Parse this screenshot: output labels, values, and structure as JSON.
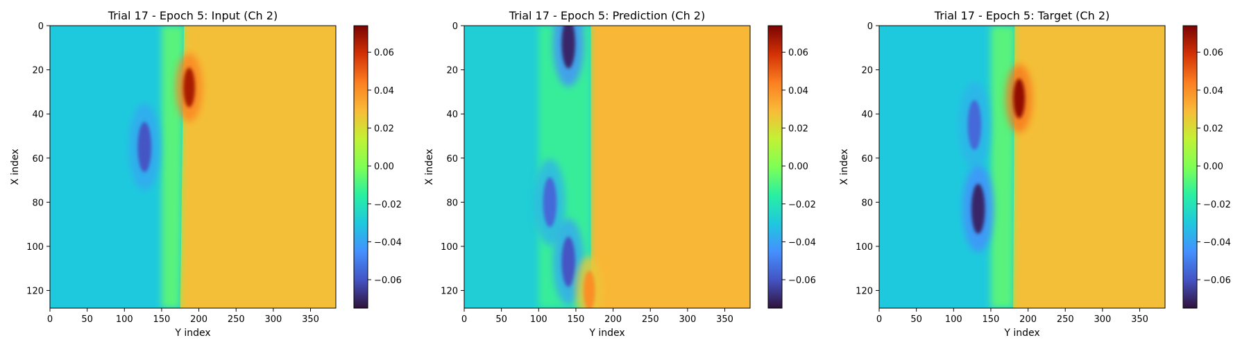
{
  "colormap": {
    "name": "turbo",
    "vmin": -0.075,
    "vmax": 0.074
  },
  "chart_data": [
    {
      "type": "heatmap",
      "title": "Trial 17 - Epoch 5: Input (Ch 2)",
      "xlabel": "Y index",
      "ylabel": "X index",
      "xlim": [
        0,
        384
      ],
      "ylim": [
        128,
        0
      ],
      "x_ticks": [
        0,
        50,
        100,
        150,
        200,
        250,
        300,
        350
      ],
      "y_ticks": [
        0,
        20,
        40,
        60,
        80,
        100,
        120
      ],
      "colorbar_ticks": [
        0.06,
        0.04,
        0.02,
        0.0,
        -0.02,
        -0.04,
        -0.06
      ],
      "colorbar_labels": [
        "0.06",
        "0.04",
        "0.02",
        "0.00",
        "−0.02",
        "−0.04",
        "−0.06"
      ],
      "background_value": 0.028,
      "features": [
        {
          "kind": "left_field",
          "value": -0.03
        },
        {
          "kind": "front",
          "x_at_top": 180,
          "x_at_bottom": 175
        },
        {
          "kind": "transition_band",
          "x_start": 150,
          "x_end": 178,
          "value": -0.005
        },
        {
          "kind": "trough",
          "x": 127,
          "y": 55,
          "value": -0.06
        },
        {
          "kind": "peak",
          "x": 187,
          "y": 28,
          "value": 0.066
        }
      ]
    },
    {
      "type": "heatmap",
      "title": "Trial 17 - Epoch 5: Prediction (Ch 2)",
      "xlabel": "Y index",
      "ylabel": "X index",
      "xlim": [
        0,
        384
      ],
      "ylim": [
        128,
        0
      ],
      "x_ticks": [
        0,
        50,
        100,
        150,
        200,
        250,
        300,
        350
      ],
      "y_ticks": [
        0,
        20,
        40,
        60,
        80,
        100,
        120
      ],
      "colorbar_ticks": [
        0.06,
        0.04,
        0.02,
        0.0,
        -0.02,
        -0.04,
        -0.06
      ],
      "colorbar_labels": [
        "0.06",
        "0.04",
        "0.02",
        "0.00",
        "−0.02",
        "−0.04",
        "−0.06"
      ],
      "background_value": 0.03,
      "features": [
        {
          "kind": "left_field",
          "value": -0.028
        },
        {
          "kind": "front",
          "x_at_top": 170,
          "x_at_bottom": 170
        },
        {
          "kind": "transition_band",
          "x_start": 100,
          "x_end": 170,
          "value": -0.012
        },
        {
          "kind": "trough",
          "x": 140,
          "y": 8,
          "value": -0.07
        },
        {
          "kind": "trough",
          "x": 115,
          "y": 80,
          "value": -0.055
        },
        {
          "kind": "trough",
          "x": 140,
          "y": 107,
          "value": -0.06
        },
        {
          "kind": "peak",
          "x": 168,
          "y": 120,
          "value": 0.04
        }
      ]
    },
    {
      "type": "heatmap",
      "title": "Trial 17 - Epoch 5: Target (Ch 2)",
      "xlabel": "Y index",
      "ylabel": "X index",
      "xlim": [
        0,
        384
      ],
      "ylim": [
        128,
        0
      ],
      "x_ticks": [
        0,
        50,
        100,
        150,
        200,
        250,
        300,
        350
      ],
      "y_ticks": [
        0,
        20,
        40,
        60,
        80,
        100,
        120
      ],
      "colorbar_ticks": [
        0.06,
        0.04,
        0.02,
        0.0,
        -0.02,
        -0.04,
        -0.06
      ],
      "colorbar_labels": [
        "0.06",
        "0.04",
        "0.02",
        "0.00",
        "−0.02",
        "−0.04",
        "−0.06"
      ],
      "background_value": 0.028,
      "features": [
        {
          "kind": "left_field",
          "value": -0.03
        },
        {
          "kind": "front",
          "x_at_top": 182,
          "x_at_bottom": 180
        },
        {
          "kind": "transition_band",
          "x_start": 150,
          "x_end": 180,
          "value": -0.005
        },
        {
          "kind": "trough",
          "x": 128,
          "y": 45,
          "value": -0.055
        },
        {
          "kind": "trough",
          "x": 133,
          "y": 83,
          "value": -0.07
        },
        {
          "kind": "peak",
          "x": 188,
          "y": 33,
          "value": 0.07
        }
      ]
    }
  ]
}
